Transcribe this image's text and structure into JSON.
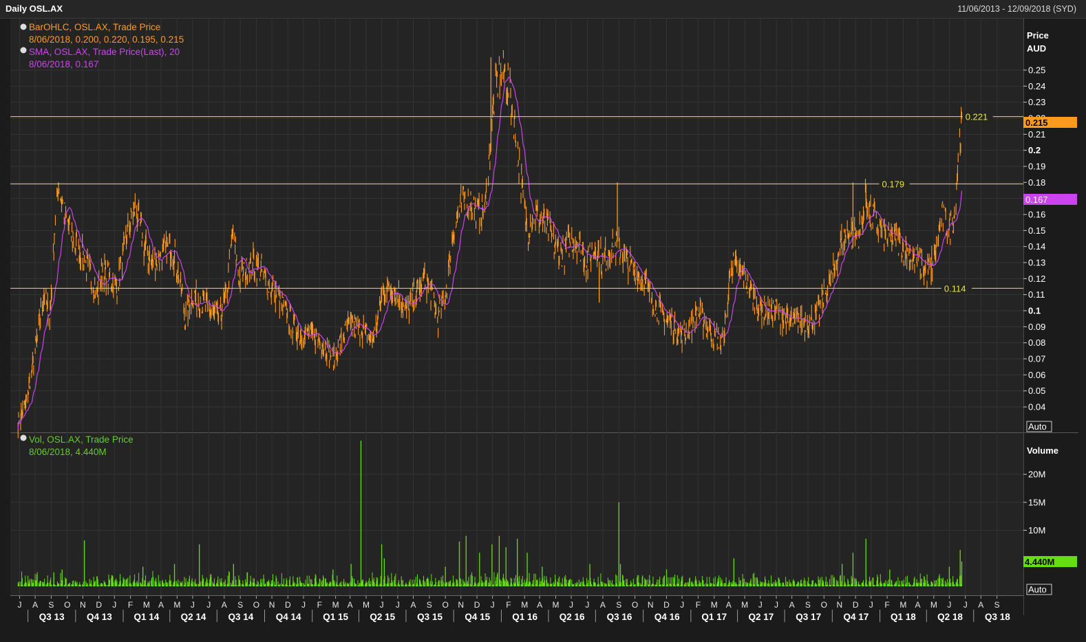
{
  "header": {
    "title": "Daily OSL.AX",
    "date_range": "11/06/2013 - 12/09/2018 (SYD)"
  },
  "price_panel": {
    "legend": [
      {
        "label": "BarOHLC, OSL.AX, Trade Price",
        "value": "8/06/2018, 0.200, 0.220, 0.195, 0.215",
        "color": "#ff9a1a"
      },
      {
        "label": "SMA, OSL.AX, Trade Price(Last),  20",
        "value": "8/06/2018, 0.167",
        "color": "#cc44ee"
      }
    ],
    "axis_title": [
      "Price",
      "AUD"
    ],
    "auto_label": "Auto",
    "last_price_tag": "0.215",
    "sma_tag": "0.167",
    "hlines": [
      {
        "value": 0.221,
        "label": "0.221"
      },
      {
        "value": 0.179,
        "label": "0.179"
      },
      {
        "value": 0.114,
        "label": "0.114"
      }
    ]
  },
  "volume_panel": {
    "legend": [
      {
        "label": "Vol, OSL.AX, Trade Price",
        "value": "8/06/2018, 4.440M",
        "color": "#66cc22"
      }
    ],
    "axis_title": "Volume",
    "auto_label": "Auto",
    "last_vol_tag": "4.440M"
  },
  "colors": {
    "price": "#ff9a1a",
    "sma": "#cc44ee",
    "volume": "#66dd11",
    "hline": "#e8e830",
    "grid": "#333333"
  },
  "chart_data": {
    "type": "bar",
    "subtype": "OHLC bars with 20-day SMA and volume histogram",
    "price_axis": {
      "ylim": [
        0.025,
        0.265
      ],
      "ticks": [
        {
          "v": 0.25,
          "t": "0.25"
        },
        {
          "v": 0.24,
          "t": "0.24"
        },
        {
          "v": 0.23,
          "t": "0.23"
        },
        {
          "v": 0.22,
          "t": "0.22"
        },
        {
          "v": 0.21,
          "t": "0.21"
        },
        {
          "v": 0.2,
          "t": "0.2"
        },
        {
          "v": 0.19,
          "t": "0.19"
        },
        {
          "v": 0.18,
          "t": "0.18"
        },
        {
          "v": 0.17,
          "t": "0.17"
        },
        {
          "v": 0.16,
          "t": "0.16"
        },
        {
          "v": 0.15,
          "t": "0.15"
        },
        {
          "v": 0.14,
          "t": "0.14"
        },
        {
          "v": 0.13,
          "t": "0.13"
        },
        {
          "v": 0.12,
          "t": "0.12"
        },
        {
          "v": 0.11,
          "t": "0.11"
        },
        {
          "v": 0.1,
          "t": "0.1"
        },
        {
          "v": 0.09,
          "t": "0.09"
        },
        {
          "v": 0.08,
          "t": "0.08"
        },
        {
          "v": 0.07,
          "t": "0.07"
        },
        {
          "v": 0.06,
          "t": "0.06"
        },
        {
          "v": 0.05,
          "t": "0.05"
        },
        {
          "v": 0.04,
          "t": "0.04"
        }
      ]
    },
    "volume_axis": {
      "ylim": [
        0,
        27000000
      ],
      "ticks": [
        {
          "v": 20000000,
          "t": "20M"
        },
        {
          "v": 15000000,
          "t": "15M"
        },
        {
          "v": 10000000,
          "t": "10M"
        }
      ]
    },
    "x_axis": {
      "months": [
        "J",
        "A",
        "S",
        "O",
        "N",
        "D",
        "J",
        "F",
        "M",
        "A",
        "M",
        "J",
        "J",
        "A",
        "S",
        "O",
        "N",
        "D",
        "J",
        "F",
        "M",
        "A",
        "M",
        "J",
        "J",
        "A",
        "S",
        "O",
        "N",
        "D",
        "J",
        "F",
        "M",
        "A",
        "M",
        "J",
        "J",
        "A",
        "S",
        "O",
        "N",
        "D",
        "J",
        "F",
        "M",
        "A",
        "M",
        "J",
        "J",
        "A",
        "S",
        "O",
        "N",
        "D",
        "J",
        "F",
        "M",
        "A",
        "M",
        "J",
        "J",
        "A",
        "S"
      ],
      "quarters": [
        "Q3 13",
        "Q4 13",
        "Q1 14",
        "Q2 14",
        "Q3 14",
        "Q4 14",
        "Q1 15",
        "Q2 15",
        "Q3 15",
        "Q4 15",
        "Q1 16",
        "Q2 16",
        "Q3 16",
        "Q4 16",
        "Q1 17",
        "Q2 17",
        "Q3 17",
        "Q4 17",
        "Q1 18",
        "Q2 18",
        "Q3 18"
      ]
    },
    "price_path": [
      {
        "date": "2013-06-12",
        "close": 0.03
      },
      {
        "date": "2013-06-25",
        "close": 0.04
      },
      {
        "date": "2013-07-08",
        "close": 0.06
      },
      {
        "date": "2013-07-22",
        "close": 0.09
      },
      {
        "date": "2013-08-01",
        "close": 0.11
      },
      {
        "date": "2013-08-12",
        "close": 0.095
      },
      {
        "date": "2013-08-22",
        "close": 0.15
      },
      {
        "date": "2013-08-29",
        "close": 0.18
      },
      {
        "date": "2013-09-09",
        "close": 0.16
      },
      {
        "date": "2013-09-20",
        "close": 0.15
      },
      {
        "date": "2013-10-01",
        "close": 0.14
      },
      {
        "date": "2013-10-15",
        "close": 0.135
      },
      {
        "date": "2013-11-01",
        "close": 0.12
      },
      {
        "date": "2013-11-12",
        "close": 0.11
      },
      {
        "date": "2013-11-22",
        "close": 0.125
      },
      {
        "date": "2013-12-05",
        "close": 0.12
      },
      {
        "date": "2013-12-20",
        "close": 0.115
      },
      {
        "date": "2014-01-10",
        "close": 0.15
      },
      {
        "date": "2014-01-25",
        "close": 0.165
      },
      {
        "date": "2014-02-10",
        "close": 0.14
      },
      {
        "date": "2014-02-25",
        "close": 0.13
      },
      {
        "date": "2014-03-15",
        "close": 0.135
      },
      {
        "date": "2014-04-05",
        "close": 0.14
      },
      {
        "date": "2014-04-20",
        "close": 0.12
      },
      {
        "date": "2014-05-01",
        "close": 0.095
      },
      {
        "date": "2014-05-15",
        "close": 0.11
      },
      {
        "date": "2014-06-01",
        "close": 0.105
      },
      {
        "date": "2014-06-20",
        "close": 0.1
      },
      {
        "date": "2014-07-05",
        "close": 0.095
      },
      {
        "date": "2014-07-20",
        "close": 0.11
      },
      {
        "date": "2014-08-01",
        "close": 0.15
      },
      {
        "date": "2014-08-12",
        "close": 0.12
      },
      {
        "date": "2014-08-25",
        "close": 0.125
      },
      {
        "date": "2014-09-10",
        "close": 0.13
      },
      {
        "date": "2014-09-25",
        "close": 0.125
      },
      {
        "date": "2014-10-10",
        "close": 0.115
      },
      {
        "date": "2014-10-25",
        "close": 0.11
      },
      {
        "date": "2014-11-10",
        "close": 0.1
      },
      {
        "date": "2014-11-25",
        "close": 0.09
      },
      {
        "date": "2014-12-10",
        "close": 0.085
      },
      {
        "date": "2014-12-30",
        "close": 0.085
      },
      {
        "date": "2015-01-15",
        "close": 0.082
      },
      {
        "date": "2015-02-01",
        "close": 0.075
      },
      {
        "date": "2015-02-12",
        "close": 0.07
      },
      {
        "date": "2015-02-25",
        "close": 0.08
      },
      {
        "date": "2015-03-10",
        "close": 0.09
      },
      {
        "date": "2015-03-25",
        "close": 0.09
      },
      {
        "date": "2015-04-10",
        "close": 0.088
      },
      {
        "date": "2015-04-25",
        "close": 0.08
      },
      {
        "date": "2015-05-05",
        "close": 0.09
      },
      {
        "date": "2015-05-15",
        "close": 0.11
      },
      {
        "date": "2015-06-01",
        "close": 0.115
      },
      {
        "date": "2015-06-15",
        "close": 0.11
      },
      {
        "date": "2015-07-01",
        "close": 0.1
      },
      {
        "date": "2015-07-20",
        "close": 0.11
      },
      {
        "date": "2015-08-05",
        "close": 0.12
      },
      {
        "date": "2015-08-20",
        "close": 0.11
      },
      {
        "date": "2015-09-01",
        "close": 0.095
      },
      {
        "date": "2015-09-15",
        "close": 0.11
      },
      {
        "date": "2015-10-01",
        "close": 0.15
      },
      {
        "date": "2015-10-15",
        "close": 0.165
      },
      {
        "date": "2015-11-01",
        "close": 0.17
      },
      {
        "date": "2015-11-15",
        "close": 0.16
      },
      {
        "date": "2015-12-01",
        "close": 0.165
      },
      {
        "date": "2015-12-10",
        "close": 0.2
      },
      {
        "date": "2015-12-20",
        "close": 0.24
      },
      {
        "date": "2016-01-05",
        "close": 0.25
      },
      {
        "date": "2016-01-15",
        "close": 0.24
      },
      {
        "date": "2016-01-25",
        "close": 0.22
      },
      {
        "date": "2016-02-05",
        "close": 0.19
      },
      {
        "date": "2016-02-20",
        "close": 0.15
      },
      {
        "date": "2016-03-01",
        "close": 0.16
      },
      {
        "date": "2016-03-15",
        "close": 0.16
      },
      {
        "date": "2016-04-01",
        "close": 0.15
      },
      {
        "date": "2016-04-15",
        "close": 0.14
      },
      {
        "date": "2016-05-01",
        "close": 0.135
      },
      {
        "date": "2016-05-15",
        "close": 0.145
      },
      {
        "date": "2016-06-01",
        "close": 0.14
      },
      {
        "date": "2016-06-15",
        "close": 0.13
      },
      {
        "date": "2016-07-01",
        "close": 0.14
      },
      {
        "date": "2016-07-15",
        "close": 0.13
      },
      {
        "date": "2016-08-01",
        "close": 0.14
      },
      {
        "date": "2016-08-15",
        "close": 0.14
      },
      {
        "date": "2016-09-01",
        "close": 0.13
      },
      {
        "date": "2016-09-15",
        "close": 0.125
      },
      {
        "date": "2016-10-01",
        "close": 0.12
      },
      {
        "date": "2016-10-15",
        "close": 0.11
      },
      {
        "date": "2016-11-01",
        "close": 0.1
      },
      {
        "date": "2016-11-15",
        "close": 0.095
      },
      {
        "date": "2016-12-01",
        "close": 0.09
      },
      {
        "date": "2016-12-15",
        "close": 0.085
      },
      {
        "date": "2017-01-01",
        "close": 0.09
      },
      {
        "date": "2017-01-15",
        "close": 0.1
      },
      {
        "date": "2017-02-01",
        "close": 0.09
      },
      {
        "date": "2017-02-15",
        "close": 0.085
      },
      {
        "date": "2017-03-01",
        "close": 0.08
      },
      {
        "date": "2017-03-10",
        "close": 0.095
      },
      {
        "date": "2017-03-20",
        "close": 0.13
      },
      {
        "date": "2017-04-01",
        "close": 0.125
      },
      {
        "date": "2017-04-15",
        "close": 0.12
      },
      {
        "date": "2017-05-01",
        "close": 0.11
      },
      {
        "date": "2017-05-15",
        "close": 0.1
      },
      {
        "date": "2017-06-01",
        "close": 0.1
      },
      {
        "date": "2017-06-15",
        "close": 0.1
      },
      {
        "date": "2017-07-01",
        "close": 0.095
      },
      {
        "date": "2017-07-15",
        "close": 0.092
      },
      {
        "date": "2017-08-01",
        "close": 0.095
      },
      {
        "date": "2017-08-15",
        "close": 0.092
      },
      {
        "date": "2017-09-01",
        "close": 0.095
      },
      {
        "date": "2017-09-15",
        "close": 0.11
      },
      {
        "date": "2017-10-01",
        "close": 0.12
      },
      {
        "date": "2017-10-15",
        "close": 0.14
      },
      {
        "date": "2017-11-01",
        "close": 0.15
      },
      {
        "date": "2017-11-15",
        "close": 0.145
      },
      {
        "date": "2017-11-25",
        "close": 0.15
      },
      {
        "date": "2017-12-05",
        "close": 0.17
      },
      {
        "date": "2017-12-15",
        "close": 0.16
      },
      {
        "date": "2018-01-01",
        "close": 0.15
      },
      {
        "date": "2018-01-15",
        "close": 0.145
      },
      {
        "date": "2018-02-01",
        "close": 0.145
      },
      {
        "date": "2018-02-15",
        "close": 0.14
      },
      {
        "date": "2018-03-01",
        "close": 0.135
      },
      {
        "date": "2018-03-15",
        "close": 0.13
      },
      {
        "date": "2018-04-01",
        "close": 0.125
      },
      {
        "date": "2018-04-15",
        "close": 0.13
      },
      {
        "date": "2018-05-01",
        "close": 0.16
      },
      {
        "date": "2018-05-15",
        "close": 0.15
      },
      {
        "date": "2018-05-25",
        "close": 0.16
      },
      {
        "date": "2018-06-01",
        "close": 0.195
      },
      {
        "date": "2018-06-08",
        "close": 0.215
      }
    ],
    "price_spikes": [
      {
        "date": "2013-08-29",
        "high": 0.18
      },
      {
        "date": "2015-12-12",
        "high": 0.258
      },
      {
        "date": "2016-01-05",
        "high": 0.262
      },
      {
        "date": "2016-08-12",
        "high": 0.18
      },
      {
        "date": "2017-11-10",
        "high": 0.18
      },
      {
        "date": "2017-12-05",
        "high": 0.179
      },
      {
        "date": "2018-06-07",
        "high": 0.221
      }
    ],
    "price_dips": [
      {
        "date": "2016-07-08",
        "low": 0.105
      },
      {
        "date": "2017-02-10",
        "low": 0.077
      },
      {
        "date": "2018-04-10",
        "low": 0.116
      }
    ],
    "volume_spikes": [
      {
        "date": "2013-08-20",
        "value": 2500000
      },
      {
        "date": "2013-09-05",
        "value": 3000000
      },
      {
        "date": "2013-10-18",
        "value": 8200000
      },
      {
        "date": "2013-12-10",
        "value": 2000000
      },
      {
        "date": "2014-02-08",
        "value": 3500000
      },
      {
        "date": "2014-04-10",
        "value": 4000000
      },
      {
        "date": "2014-05-28",
        "value": 7500000
      },
      {
        "date": "2014-08-02",
        "value": 4000000
      },
      {
        "date": "2015-02-10",
        "value": 3000000
      },
      {
        "date": "2015-03-17",
        "value": 4000000
      },
      {
        "date": "2015-04-05",
        "value": 26000000
      },
      {
        "date": "2015-05-15",
        "value": 7500000
      },
      {
        "date": "2015-05-20",
        "value": 5000000
      },
      {
        "date": "2015-09-15",
        "value": 3500000
      },
      {
        "date": "2015-10-12",
        "value": 8000000
      },
      {
        "date": "2015-10-25",
        "value": 9000000
      },
      {
        "date": "2015-11-20",
        "value": 6000000
      },
      {
        "date": "2015-12-14",
        "value": 7500000
      },
      {
        "date": "2015-12-28",
        "value": 9000000
      },
      {
        "date": "2016-01-10",
        "value": 7000000
      },
      {
        "date": "2016-02-01",
        "value": 8500000
      },
      {
        "date": "2016-02-20",
        "value": 6000000
      },
      {
        "date": "2016-03-20",
        "value": 3500000
      },
      {
        "date": "2016-06-20",
        "value": 4000000
      },
      {
        "date": "2016-08-15",
        "value": 15000000
      },
      {
        "date": "2016-08-18",
        "value": 4000000
      },
      {
        "date": "2016-11-15",
        "value": 3000000
      },
      {
        "date": "2017-03-25",
        "value": 5000000
      },
      {
        "date": "2017-10-20",
        "value": 4000000
      },
      {
        "date": "2017-11-10",
        "value": 6000000
      },
      {
        "date": "2017-12-05",
        "value": 8500000
      },
      {
        "date": "2018-01-20",
        "value": 3000000
      },
      {
        "date": "2018-05-15",
        "value": 3500000
      },
      {
        "date": "2018-06-05",
        "value": 6500000
      },
      {
        "date": "2018-06-08",
        "value": 4440000
      }
    ]
  }
}
